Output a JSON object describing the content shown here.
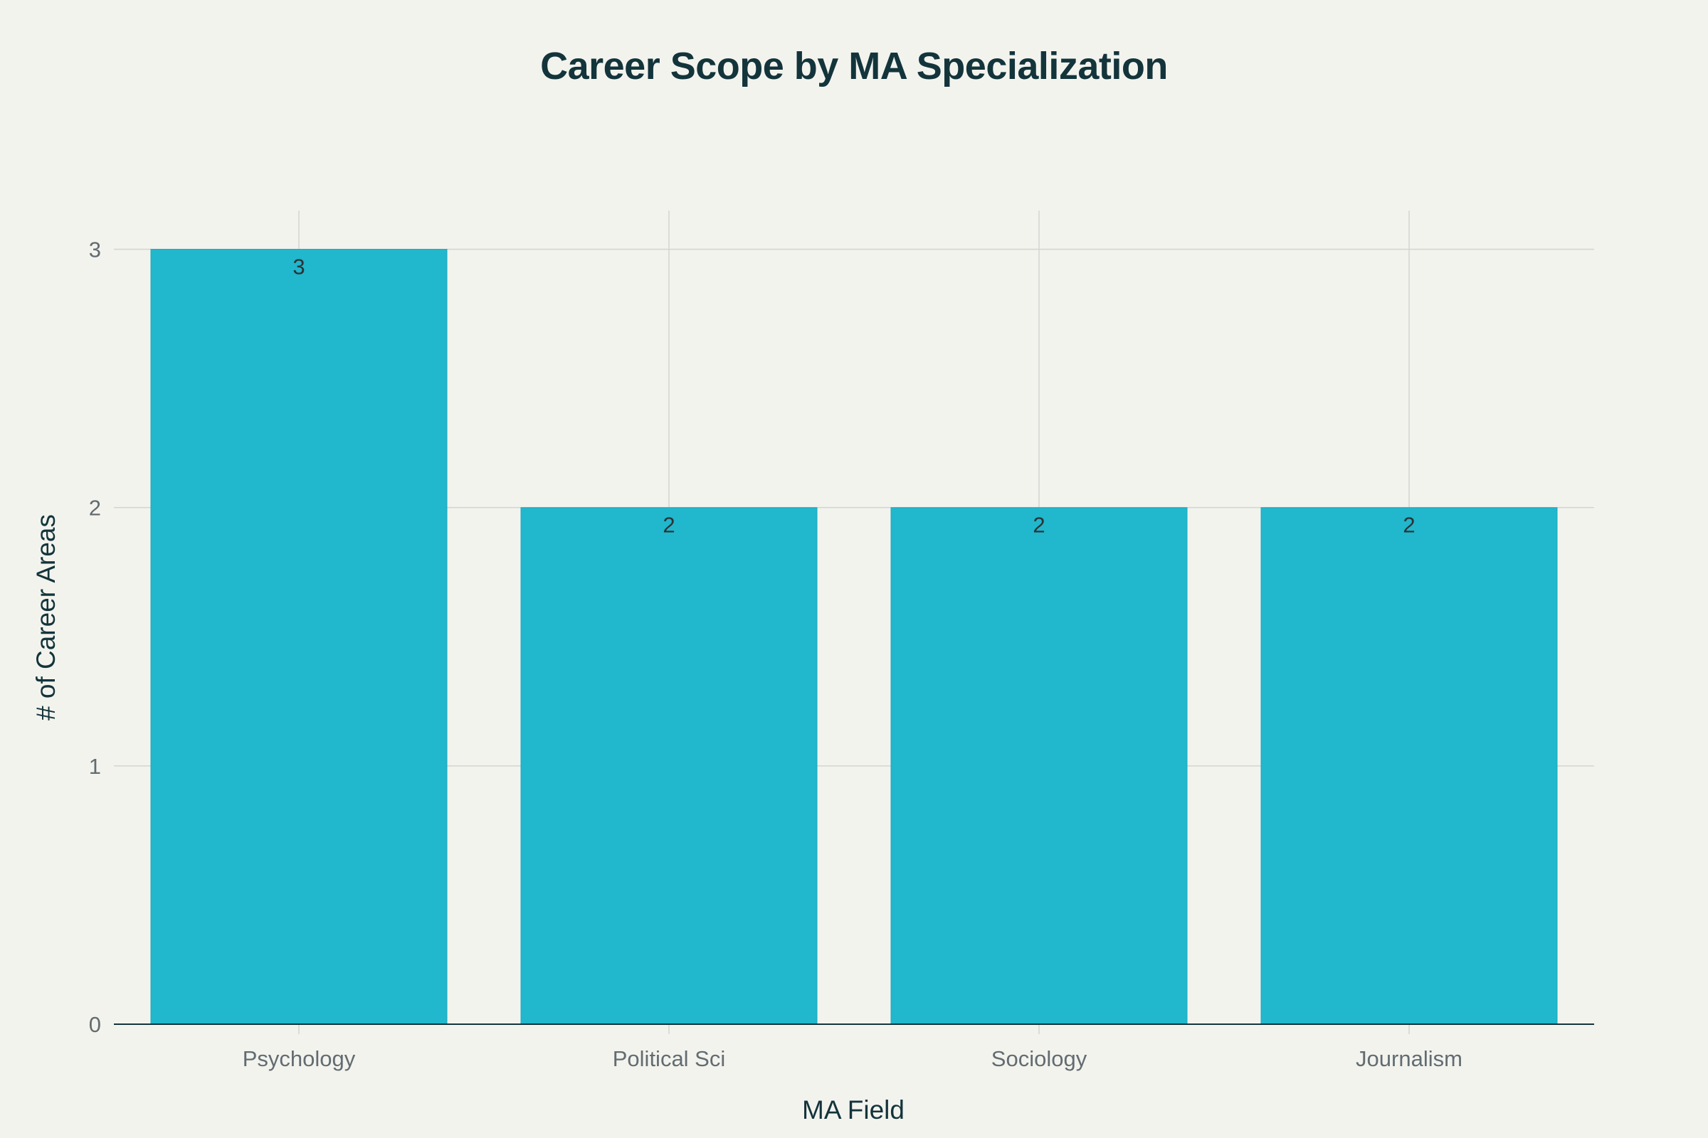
{
  "chart_data": {
    "type": "bar",
    "title": "Career Scope by MA Specialization",
    "xlabel": "MA Field",
    "ylabel": "# of Career Areas",
    "categories": [
      "Psychology",
      "Political Sci",
      "Sociology",
      "Journalism"
    ],
    "values": [
      3,
      2,
      2,
      2
    ],
    "data_labels": [
      "3",
      "2",
      "2",
      "2"
    ],
    "ylim": [
      0,
      3.15
    ],
    "yticks": [
      0,
      1,
      2,
      3
    ],
    "ytick_labels": [
      "0",
      "1",
      "2",
      "3"
    ],
    "grid": true,
    "bar_color": "#21b7cc",
    "background_color": "#f3f3ee",
    "grid_color": "#d3d4d0",
    "axis_color": "#13343b"
  }
}
